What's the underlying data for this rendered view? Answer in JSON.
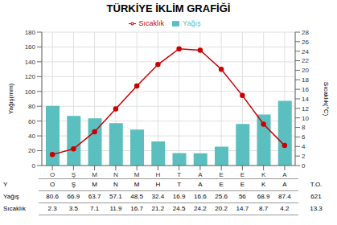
{
  "chart_data": {
    "type": "bar",
    "title": "TÜRKİYE İKLİM GRAFİĞİ",
    "categories": [
      "O",
      "Ş",
      "M",
      "N",
      "M",
      "H",
      "T",
      "A",
      "E",
      "E",
      "K",
      "A"
    ],
    "series": [
      {
        "name": "Yağış",
        "type": "bar",
        "color": "#5bbfbf",
        "values": [
          80.6,
          66.9,
          63.7,
          57.1,
          48.5,
          32.4,
          16.9,
          16.6,
          25.6,
          56,
          68.9,
          87.4
        ]
      },
      {
        "name": "Sıcaklık",
        "type": "line",
        "color": "#cc0000",
        "marker": "circle",
        "axis": "y2",
        "values": [
          2.3,
          3.5,
          7.1,
          11.9,
          16.7,
          21.2,
          24.5,
          24.2,
          20.2,
          14.7,
          8.7,
          4.2
        ]
      }
    ],
    "y_label": "Yağış(mm)",
    "y2_label": "Sıcaklık(°C)",
    "ylim": [
      0,
      180
    ],
    "yticks": [
      0,
      20,
      40,
      60,
      80,
      100,
      120,
      140,
      160,
      180
    ],
    "y2lim": [
      0,
      28
    ],
    "y2ticks": [
      0,
      2,
      4,
      6,
      8,
      10,
      12,
      14,
      16,
      18,
      20,
      22,
      24,
      26,
      28
    ],
    "grid": true,
    "legend": "top",
    "table": {
      "corner_label": "Y",
      "total_label": "T.O.",
      "rows": [
        {
          "label": "Yağış",
          "total": 621
        },
        {
          "label": "Sıcaklık",
          "total": 13.3
        }
      ]
    }
  }
}
